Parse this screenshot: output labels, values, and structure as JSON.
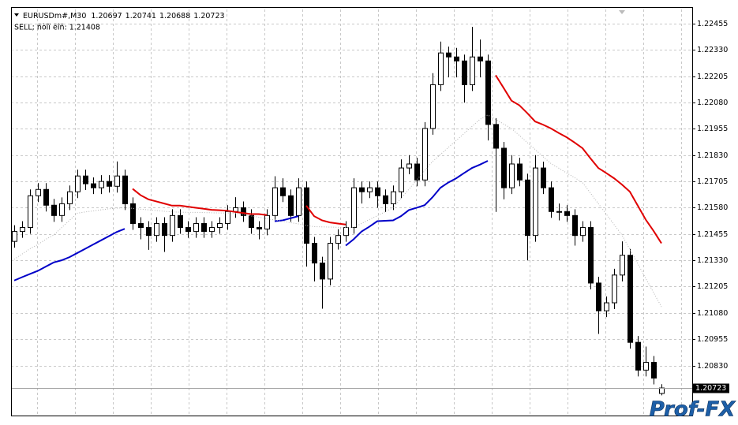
{
  "chart_data": {
    "type": "candlestick",
    "title": "EURUSDm#,M30",
    "subtitle": "SELL; ñòîï ëîñ: 1.21408",
    "watermark": "Prof-FX",
    "last_price": 1.20723,
    "ylim": [
      1.20592,
      1.22534
    ],
    "yticks": [
      1.22455,
      {
        "value": 1.2233,
        "label": "1.22330"
      },
      1.22205,
      {
        "value": 1.2208,
        "label": "1.22080"
      },
      1.21955,
      {
        "value": 1.2183,
        "label": "1.21830"
      },
      1.21705,
      {
        "value": 1.2158,
        "label": "1.21580"
      },
      1.21455,
      {
        "value": 1.2133,
        "label": "1.21330"
      },
      1.21205,
      {
        "value": 1.2108,
        "label": "1.21080"
      },
      1.20955,
      {
        "value": 1.2083,
        "label": "1.20830"
      }
    ],
    "grid": true,
    "up_color": "#ffffff",
    "down_color": "#000000",
    "wick_color": "#000000",
    "open": [
      1.2142,
      1.21467,
      1.21486,
      1.21637,
      1.21667,
      1.21592,
      1.21543,
      1.21599,
      1.21656,
      1.21731,
      1.21694,
      1.21675,
      1.21705,
      1.21682,
      1.21731,
      1.21599,
      1.21505,
      1.21486,
      1.21448,
      1.21505,
      1.21448,
      1.21543,
      1.21486,
      1.21467,
      1.21505,
      1.21467,
      1.21486,
      1.21505,
      1.21562,
      1.2158,
      1.21543,
      1.21486,
      1.21479,
      1.21543,
      1.21675,
      1.21637,
      1.21543,
      1.21675,
      1.21411,
      1.21317,
      1.21241,
      1.21411,
      1.21448,
      1.21486,
      1.21675,
      1.21656,
      1.21675,
      1.21637,
      1.21599,
      1.21656,
      1.21769,
      1.21788,
      1.21712,
      1.21957,
      1.22165,
      1.22316,
      1.22297,
      1.22278,
      1.22165,
      1.22297,
      1.22278,
      1.21976,
      1.21863,
      1.21675,
      1.21788,
      1.21712,
      1.21448,
      1.21769,
      1.21675,
      1.21562,
      1.21562,
      1.21543,
      1.21448,
      1.21486,
      1.21222,
      1.2109,
      1.21128,
      1.2126,
      1.21354,
      1.2094,
      1.20808,
      1.20845,
      1.20697
    ],
    "high": [
      1.21497,
      1.21516,
      1.21667,
      1.21697,
      1.21697,
      1.21622,
      1.21629,
      1.21686,
      1.21761,
      1.21761,
      1.21724,
      1.21735,
      1.21735,
      1.218,
      1.21761,
      1.21629,
      1.21535,
      1.21516,
      1.21535,
      1.21535,
      1.21573,
      1.21573,
      1.21516,
      1.21535,
      1.21535,
      1.21516,
      1.21535,
      1.21592,
      1.2163,
      1.2161,
      1.21573,
      1.21516,
      1.21573,
      1.2173,
      1.2172,
      1.21667,
      1.2172,
      1.21705,
      1.21441,
      1.21347,
      1.21441,
      1.21478,
      1.21516,
      1.2172,
      1.21705,
      1.21705,
      1.21705,
      1.21667,
      1.21686,
      1.2181,
      1.2183,
      1.21818,
      1.21987,
      1.2222,
      1.2237,
      1.22346,
      1.2234,
      1.22308,
      1.2244,
      1.2238,
      1.22308,
      1.22006,
      1.21893,
      1.2183,
      1.21818,
      1.21742,
      1.2183,
      1.21799,
      1.21705,
      1.216,
      1.21592,
      1.21573,
      1.21516,
      1.21516,
      1.21252,
      1.21158,
      1.2129,
      1.2142,
      1.21384,
      1.2097,
      1.2092,
      1.20875,
      1.20741
    ],
    "low": [
      1.2139,
      1.21437,
      1.21456,
      1.21607,
      1.21562,
      1.21513,
      1.21513,
      1.21569,
      1.21626,
      1.21664,
      1.21645,
      1.21645,
      1.21652,
      1.21652,
      1.21569,
      1.21475,
      1.2143,
      1.2138,
      1.21418,
      1.2137,
      1.21418,
      1.21456,
      1.21437,
      1.21437,
      1.21437,
      1.21437,
      1.21456,
      1.21475,
      1.21532,
      1.21513,
      1.21456,
      1.2143,
      1.21449,
      1.21513,
      1.21607,
      1.21513,
      1.21513,
      1.213,
      1.2123,
      1.211,
      1.21211,
      1.21381,
      1.21418,
      1.21456,
      1.216,
      1.21626,
      1.2158,
      1.2156,
      1.21569,
      1.21626,
      1.21739,
      1.21682,
      1.21682,
      1.21927,
      1.22135,
      1.222,
      1.222,
      1.2208,
      1.22135,
      1.222,
      1.219,
      1.2156,
      1.2162,
      1.21645,
      1.21682,
      1.2133,
      1.21418,
      1.21645,
      1.21532,
      1.2152,
      1.21513,
      1.214,
      1.21418,
      1.21192,
      1.2098,
      1.2106,
      1.21098,
      1.2123,
      1.2091,
      1.20778,
      1.20778,
      1.2074,
      1.20688
    ],
    "close": [
      1.21467,
      1.21486,
      1.21637,
      1.21667,
      1.21592,
      1.21543,
      1.21599,
      1.21656,
      1.21731,
      1.21694,
      1.21675,
      1.21705,
      1.21682,
      1.21731,
      1.21599,
      1.21505,
      1.21486,
      1.21448,
      1.21505,
      1.21448,
      1.21543,
      1.21486,
      1.21467,
      1.21505,
      1.21467,
      1.21486,
      1.21505,
      1.21562,
      1.2158,
      1.21543,
      1.21486,
      1.21479,
      1.21543,
      1.21675,
      1.21637,
      1.21543,
      1.21675,
      1.21411,
      1.21317,
      1.21241,
      1.21411,
      1.21448,
      1.21486,
      1.21675,
      1.21656,
      1.21675,
      1.21637,
      1.21599,
      1.21656,
      1.21769,
      1.21788,
      1.21712,
      1.21957,
      1.22165,
      1.22316,
      1.22297,
      1.22278,
      1.22165,
      1.22297,
      1.22278,
      1.21976,
      1.21863,
      1.21675,
      1.21788,
      1.21712,
      1.21448,
      1.21769,
      1.21675,
      1.21562,
      1.21562,
      1.21543,
      1.21448,
      1.21486,
      1.21222,
      1.2109,
      1.21128,
      1.2126,
      1.21354,
      1.2094,
      1.20808,
      1.20845,
      1.2077,
      1.20723
    ],
    "series": [
      {
        "color": "#0000c8",
        "values": [
          1.21234,
          1.2125,
          1.21265,
          1.2128,
          1.213,
          1.2132,
          1.2133,
          1.21345,
          1.21365,
          1.21385,
          1.21405,
          1.21425,
          1.21445,
          1.21465,
          1.2148,
          null,
          null,
          null,
          null,
          null,
          null,
          null,
          null,
          null,
          null,
          null,
          null,
          null,
          null,
          null,
          null,
          null,
          null,
          1.21516,
          1.2152,
          1.2153,
          1.2154,
          null,
          null,
          null,
          null,
          null,
          1.214,
          1.2143,
          1.21467,
          1.2149,
          1.21516,
          1.21518,
          1.2152,
          1.2154,
          1.21569,
          1.2158,
          1.21592,
          1.2163,
          1.21675,
          1.217,
          1.2172,
          1.21745,
          1.21769,
          1.21785,
          1.21803,
          null,
          null,
          null,
          null,
          null,
          null,
          null,
          null,
          null,
          null,
          null,
          null,
          null,
          null,
          null,
          null,
          null,
          null,
          null,
          null,
          null,
          null
        ]
      },
      {
        "color": "#e00000",
        "values": [
          null,
          null,
          null,
          null,
          null,
          null,
          null,
          null,
          null,
          null,
          null,
          null,
          null,
          null,
          null,
          1.2167,
          1.2164,
          1.2162,
          1.2161,
          1.216,
          1.2159,
          1.2159,
          1.21585,
          1.2158,
          1.21575,
          1.2157,
          1.21568,
          1.21566,
          1.2156,
          1.21555,
          1.2155,
          1.2155,
          1.21545,
          null,
          null,
          null,
          null,
          1.2159,
          1.2154,
          1.2152,
          1.2151,
          1.21505,
          1.215,
          null,
          null,
          null,
          null,
          null,
          null,
          null,
          null,
          null,
          null,
          null,
          null,
          null,
          null,
          null,
          null,
          null,
          null,
          1.2221,
          1.2215,
          1.22089,
          1.22067,
          1.2203,
          1.2199,
          1.21975,
          1.21957,
          1.21935,
          1.21915,
          1.2189,
          1.21863,
          1.21815,
          1.21769,
          1.21745,
          1.2172,
          1.2169,
          1.21656,
          1.2159,
          1.21524,
          1.2147,
          1.21411
        ]
      },
      {
        "color": "#b4b4b4",
        "dashed": true,
        "values": [
          1.21335,
          1.2136,
          1.21385,
          1.21405,
          1.2143,
          1.2145,
          1.21485,
          1.2152,
          1.21554,
          1.2156,
          1.21565,
          1.2157,
          1.21575,
          1.21578,
          1.2158,
          1.21577,
          1.21573,
          1.2157,
          1.21567,
          1.21563,
          1.2156,
          1.21559,
          1.21558,
          1.21558,
          1.21557,
          1.21556,
          1.21555,
          1.21555,
          1.21554,
          1.21548,
          1.21541,
          1.21535,
          1.21528,
          1.21522,
          1.21516,
          1.21509,
          1.21503,
          1.21496,
          1.2149,
          1.21489,
          1.21488,
          1.21487,
          1.21486,
          1.21486,
          1.21505,
          1.21524,
          1.21542,
          1.21561,
          1.2158,
          1.21624,
          1.21668,
          1.21712,
          1.21756,
          1.218,
          1.21833,
          1.21867,
          1.219,
          1.21933,
          1.21967,
          1.22,
          1.22021,
          1.22,
          1.21978,
          1.21957,
          1.21924,
          1.2189,
          1.21857,
          1.21823,
          1.2179,
          1.21768,
          1.21745,
          1.21723,
          1.217,
          1.2165,
          1.216,
          1.2155,
          1.215,
          1.2145,
          1.21382,
          1.21314,
          1.21245,
          1.21177,
          1.21109
        ]
      }
    ]
  }
}
